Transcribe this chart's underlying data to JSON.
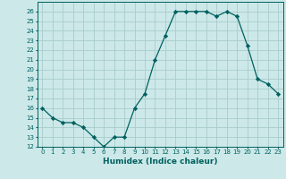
{
  "x": [
    0,
    1,
    2,
    3,
    4,
    5,
    6,
    7,
    8,
    9,
    10,
    11,
    12,
    13,
    14,
    15,
    16,
    17,
    18,
    19,
    20,
    21,
    22,
    23
  ],
  "y": [
    16,
    15,
    14.5,
    14.5,
    14,
    13,
    12,
    13,
    13,
    16,
    17.5,
    21,
    23.5,
    26,
    26,
    26,
    26,
    25.5,
    26,
    25.5,
    22.5,
    19,
    18.5,
    17.5
  ],
  "line_color": "#006060",
  "marker_color": "#006060",
  "bg_color": "#cce8e8",
  "grid_color": "#aacccc",
  "xlabel": "Humidex (Indice chaleur)",
  "ylabel": "",
  "ylim": [
    12,
    27
  ],
  "xlim": [
    -0.5,
    23.5
  ],
  "yticks": [
    12,
    13,
    14,
    15,
    16,
    17,
    18,
    19,
    20,
    21,
    22,
    23,
    24,
    25,
    26
  ],
  "xticks": [
    0,
    1,
    2,
    3,
    4,
    5,
    6,
    7,
    8,
    9,
    10,
    11,
    12,
    13,
    14,
    15,
    16,
    17,
    18,
    19,
    20,
    21,
    22,
    23
  ],
  "xlabel_color": "#006060",
  "tick_color": "#006060",
  "tick_label_color": "#006060",
  "tick_fontsize": 5.0,
  "xlabel_fontsize": 6.5
}
